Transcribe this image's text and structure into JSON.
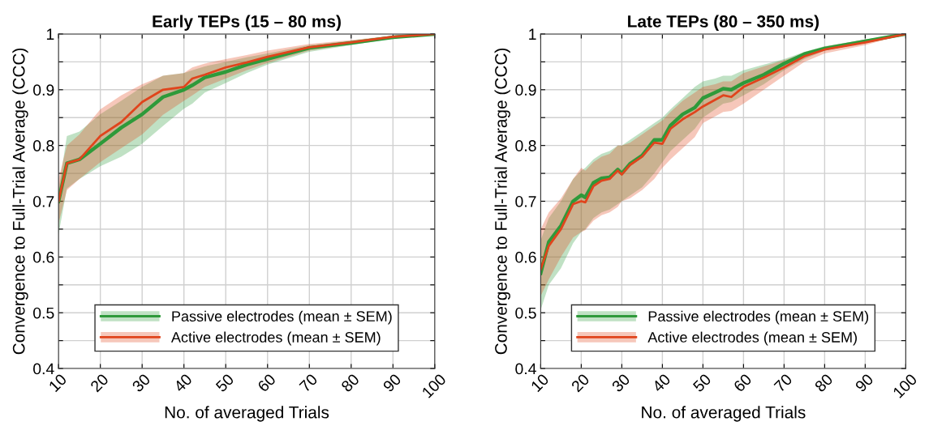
{
  "chart_data": [
    {
      "type": "line",
      "title": "Early TEPs (15 – 80 ms)",
      "xlabel": "No. of averaged Trials",
      "ylabel": "Convergence to Full-Trial Average (CCC)",
      "x": [
        10,
        12,
        15,
        20,
        25,
        30,
        35,
        40,
        42,
        45,
        50,
        55,
        60,
        70,
        80,
        90,
        100
      ],
      "xlim": [
        10,
        100
      ],
      "xticks": [
        10,
        20,
        30,
        40,
        50,
        60,
        70,
        80,
        90,
        100
      ],
      "ylim": [
        0.4,
        1
      ],
      "yticks": [
        0.4,
        {
          "value": 0.45,
          "label": null
        },
        0.5,
        {
          "value": 0.55,
          "label": null
        },
        0.6,
        {
          "value": 0.65,
          "label": null
        },
        0.7,
        {
          "value": 0.75,
          "label": null
        },
        0.8,
        {
          "value": 0.85,
          "label": null
        },
        0.9,
        {
          "value": 0.95,
          "label": null
        },
        1
      ],
      "grid": true,
      "legend": "bottom",
      "marker": "none",
      "line_style": "solid",
      "series": [
        {
          "name": "Passive electrodes (mean ± SEM)",
          "color": "#2e9a3a",
          "values": [
            0.7,
            0.768,
            0.775,
            0.803,
            0.832,
            0.856,
            0.887,
            0.9,
            0.908,
            0.922,
            0.932,
            0.945,
            0.955,
            0.975,
            0.984,
            0.994,
            1.0
          ],
          "lower": [
            0.64,
            0.723,
            0.74,
            0.763,
            0.78,
            0.803,
            0.835,
            0.866,
            0.875,
            0.895,
            0.912,
            0.93,
            0.945,
            0.968,
            0.98,
            0.992,
            1.0
          ],
          "upper": [
            0.72,
            0.817,
            0.825,
            0.856,
            0.88,
            0.905,
            0.925,
            0.93,
            0.935,
            0.942,
            0.95,
            0.958,
            0.965,
            0.98,
            0.988,
            0.996,
            1.0
          ]
        },
        {
          "name": "Active electrodes (mean ± SEM)",
          "color": "#e0441c",
          "values": [
            0.7,
            0.768,
            0.775,
            0.817,
            0.842,
            0.878,
            0.9,
            0.905,
            0.92,
            0.927,
            0.94,
            0.949,
            0.959,
            0.976,
            0.985,
            0.995,
            1.0
          ],
          "lower": [
            0.66,
            0.72,
            0.74,
            0.77,
            0.795,
            0.82,
            0.855,
            0.88,
            0.89,
            0.905,
            0.92,
            0.935,
            0.948,
            0.97,
            0.981,
            0.993,
            1.0
          ],
          "upper": [
            0.74,
            0.8,
            0.82,
            0.865,
            0.89,
            0.91,
            0.925,
            0.93,
            0.94,
            0.947,
            0.955,
            0.962,
            0.97,
            0.982,
            0.989,
            0.997,
            1.0
          ]
        }
      ]
    },
    {
      "type": "line",
      "title": "Late TEPs (80 – 350 ms)",
      "xlabel": "No. of averaged Trials",
      "ylabel": "Convergence to Full-Trial Average (CCC)",
      "x": [
        10,
        12,
        15,
        18,
        20,
        21,
        23,
        25,
        27,
        29,
        30,
        32,
        35,
        38,
        40,
        42,
        45,
        48,
        50,
        53,
        55,
        57,
        60,
        65,
        70,
        75,
        80,
        90,
        100
      ],
      "xlim": [
        10,
        100
      ],
      "xticks": [
        10,
        20,
        30,
        40,
        50,
        60,
        70,
        80,
        90,
        100
      ],
      "ylim": [
        0.4,
        1
      ],
      "yticks": [
        0.4,
        {
          "value": 0.45,
          "label": null
        },
        0.5,
        {
          "value": 0.55,
          "label": null
        },
        0.6,
        {
          "value": 0.65,
          "label": null
        },
        0.7,
        {
          "value": 0.75,
          "label": null
        },
        0.8,
        {
          "value": 0.85,
          "label": null
        },
        0.9,
        {
          "value": 0.95,
          "label": null
        },
        1
      ],
      "grid": true,
      "legend": "bottom",
      "marker": "none",
      "line_style": "solid",
      "series": [
        {
          "name": "Passive electrodes (mean ± SEM)",
          "color": "#2e9a3a",
          "values": [
            0.571,
            0.627,
            0.656,
            0.7,
            0.711,
            0.707,
            0.733,
            0.741,
            0.743,
            0.757,
            0.75,
            0.767,
            0.782,
            0.81,
            0.81,
            0.836,
            0.856,
            0.868,
            0.885,
            0.895,
            0.902,
            0.9,
            0.912,
            0.927,
            0.947,
            0.964,
            0.974,
            0.987,
            1.0
          ],
          "lower": [
            0.505,
            0.55,
            0.58,
            0.625,
            0.645,
            0.65,
            0.67,
            0.68,
            0.685,
            0.695,
            0.7,
            0.71,
            0.725,
            0.75,
            0.77,
            0.79,
            0.81,
            0.83,
            0.85,
            0.865,
            0.875,
            0.878,
            0.89,
            0.91,
            0.935,
            0.955,
            0.97,
            0.984,
            1.0
          ],
          "upper": [
            0.63,
            0.67,
            0.7,
            0.74,
            0.755,
            0.76,
            0.775,
            0.785,
            0.79,
            0.8,
            0.8,
            0.81,
            0.825,
            0.84,
            0.85,
            0.865,
            0.885,
            0.905,
            0.915,
            0.92,
            0.925,
            0.925,
            0.935,
            0.945,
            0.955,
            0.968,
            0.978,
            0.99,
            1.0
          ]
        },
        {
          "name": "Active electrodes (mean ± SEM)",
          "color": "#e0441c",
          "values": [
            0.578,
            0.62,
            0.65,
            0.695,
            0.7,
            0.698,
            0.727,
            0.737,
            0.74,
            0.755,
            0.748,
            0.765,
            0.78,
            0.805,
            0.803,
            0.83,
            0.847,
            0.86,
            0.87,
            0.882,
            0.89,
            0.887,
            0.905,
            0.922,
            0.94,
            0.96,
            0.972,
            0.985,
            1.0
          ],
          "lower": [
            0.53,
            0.56,
            0.6,
            0.635,
            0.645,
            0.648,
            0.665,
            0.675,
            0.68,
            0.69,
            0.7,
            0.705,
            0.72,
            0.74,
            0.76,
            0.775,
            0.795,
            0.815,
            0.84,
            0.852,
            0.86,
            0.862,
            0.875,
            0.9,
            0.925,
            0.95,
            0.965,
            0.98,
            1.0
          ],
          "upper": [
            0.65,
            0.68,
            0.705,
            0.74,
            0.76,
            0.755,
            0.77,
            0.78,
            0.785,
            0.8,
            0.8,
            0.805,
            0.82,
            0.835,
            0.845,
            0.86,
            0.88,
            0.895,
            0.905,
            0.91,
            0.915,
            0.915,
            0.93,
            0.942,
            0.953,
            0.965,
            0.977,
            0.99,
            1.0
          ]
        }
      ]
    }
  ]
}
